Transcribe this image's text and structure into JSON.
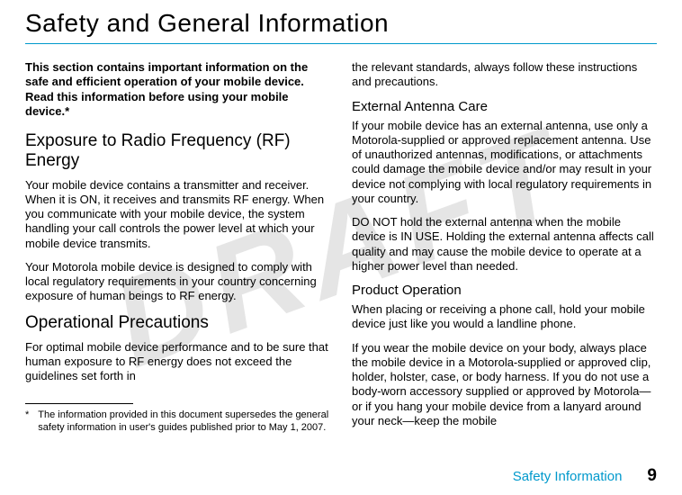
{
  "watermark": "DRAFT",
  "title": "Safety and General Information",
  "intro": "This section contains important information on the safe and efficient operation of your mobile device. Read this information before using your mobile device.*",
  "left": {
    "h2a": "Exposure to Radio Frequency (RF) Energy",
    "p1": "Your mobile device contains a transmitter and receiver. When it is ON, it receives and transmits RF energy. When you communicate with your mobile device, the system handling your call controls the power level at which your mobile device transmits.",
    "p2": "Your Motorola mobile device is designed to comply with local regulatory requirements in your country concerning exposure of human beings to RF energy.",
    "h2b": "Operational Precautions",
    "p3": "For optimal mobile device performance and to be sure that human exposure to RF energy does not exceed the guidelines set forth in",
    "footnote_star": "*",
    "footnote": "The information provided in this document supersedes the general safety information in user's guides published prior to May 1, 2007."
  },
  "right": {
    "p1": "the relevant standards, always follow these instructions and precautions.",
    "h3a": "External Antenna Care",
    "p2": "If your mobile device has an external antenna, use only a Motorola-supplied or approved replacement antenna. Use of unauthorized antennas, modifications, or attachments could damage the mobile device and/or may result in your device not complying with local regulatory requirements in your country.",
    "p3": "DO NOT hold the external antenna when the mobile device is IN USE. Holding the external antenna affects call quality and may cause the mobile device to operate at a higher power level than needed.",
    "h3b": "Product Operation",
    "p4": "When placing or receiving a phone call, hold your mobile device just like you would a landline phone.",
    "p5": "If you wear the mobile device on your body, always place the mobile device in a Motorola-supplied or approved clip, holder, holster, case, or body harness. If you do not use a body-worn accessory supplied or approved by Motorola—or if you hang your mobile device from a lanyard around your neck—keep the mobile"
  },
  "footer": {
    "label": "Safety Information",
    "page": "9"
  }
}
